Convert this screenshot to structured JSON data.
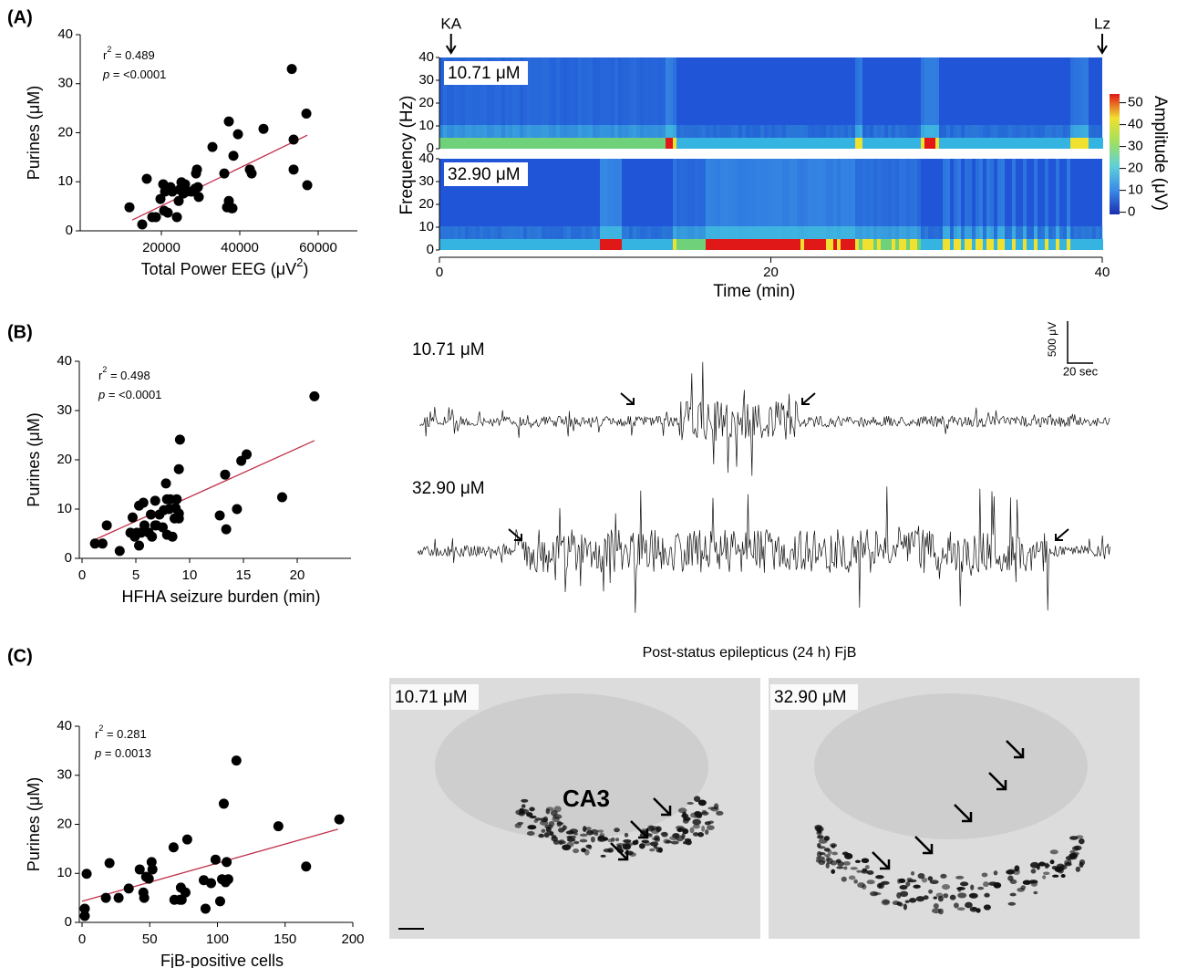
{
  "chart_data": [
    {
      "type": "scatter",
      "panel_label": "(A)",
      "ylabel": "Purines (μM)",
      "xlabel": "Total Power EEG (μV",
      "xlabel_sup": "2",
      "xlabel_end": ")",
      "xlim": [
        0,
        70000
      ],
      "xticks": [
        20000,
        40000,
        60000
      ],
      "ylim": [
        0,
        40
      ],
      "yticks": [
        0,
        10,
        20,
        30,
        40
      ],
      "color": "#000000",
      "x": [
        11860,
        15120,
        16280,
        17680,
        18600,
        19770,
        20470,
        20700,
        20930,
        21630,
        22330,
        22800,
        23960,
        24420,
        24660,
        25120,
        25590,
        26050,
        26520,
        27680,
        28610,
        28840,
        29080,
        29540,
        29310,
        33030,
        36050,
        36750,
        37210,
        37910,
        38140,
        37210,
        38380,
        39540,
        42570,
        43030,
        46050,
        53270,
        53730,
        53730,
        56990,
        57220
      ],
      "values": [
        4.8,
        1.3,
        10.6,
        2.8,
        2.8,
        6.5,
        9.5,
        4.1,
        8.0,
        3.7,
        8.9,
        8.0,
        2.8,
        6.1,
        8.4,
        9.9,
        7.6,
        9.5,
        8.0,
        8.0,
        8.6,
        11.7,
        12.5,
        6.9,
        8.9,
        17.1,
        11.7,
        4.8,
        6.1,
        4.6,
        4.6,
        22.3,
        15.3,
        19.7,
        12.5,
        11.7,
        20.8,
        33.0,
        18.6,
        12.5,
        23.9,
        9.3
      ],
      "trend": {
        "color": "#c0304a",
        "x": [
          12560,
          57220
        ],
        "y": [
          2.2,
          19.5
        ]
      },
      "annotations": [
        {
          "text": "r",
          "sup": "2",
          "rest": " = 0.489"
        },
        {
          "italic": "p",
          "rest": " = <0.0001"
        }
      ]
    },
    {
      "type": "scatter",
      "panel_label": "(B)",
      "ylabel": "Purines (μM)",
      "xlabel": "HFHA seizure burden (min)",
      "xlim": [
        0,
        25
      ],
      "xticks": [
        0,
        5,
        10,
        15,
        20
      ],
      "ylim": [
        0,
        40
      ],
      "yticks": [
        0,
        10,
        20,
        30,
        40
      ],
      "color": "#000000",
      "x": [
        1.2,
        1.9,
        2.3,
        3.5,
        4.5,
        4.7,
        4.9,
        5.1,
        5.3,
        5.3,
        5.5,
        5.7,
        5.8,
        6.2,
        6.4,
        6.5,
        6.8,
        6.8,
        6.9,
        7.2,
        7.5,
        7.6,
        7.8,
        7.9,
        7.9,
        8.1,
        8.2,
        8.4,
        8.6,
        8.7,
        8.8,
        9.0,
        9.0,
        9.0,
        9.1,
        12.8,
        13.3,
        13.4,
        14.4,
        14.8,
        15.3,
        18.6,
        21.6
      ],
      "values": [
        3.0,
        3.0,
        6.7,
        1.5,
        5.2,
        8.3,
        4.4,
        5.2,
        10.7,
        2.6,
        5.2,
        11.3,
        6.7,
        5.2,
        8.9,
        4.4,
        6.7,
        11.7,
        6.7,
        8.9,
        6.3,
        9.8,
        15.2,
        4.8,
        12.0,
        10.0,
        12.0,
        4.4,
        8.1,
        10.2,
        12.0,
        18.1,
        9.1,
        8.1,
        24.1,
        8.7,
        17.0,
        5.9,
        10.0,
        19.8,
        21.1,
        12.4,
        32.9
      ],
      "trend": {
        "color": "#c0304a",
        "x": [
          0.9,
          21.6
        ],
        "y": [
          3.5,
          23.9
        ]
      },
      "annotations": [
        {
          "text": "r",
          "sup": "2",
          "rest": " = 0.498"
        },
        {
          "italic": "p",
          "rest": " = <0.0001"
        }
      ]
    },
    {
      "type": "scatter",
      "panel_label": "(C)",
      "ylabel": "Purines (μM)",
      "xlabel": "FjB-positive cells",
      "xlim": [
        0,
        200
      ],
      "xticks": [
        0,
        50,
        100,
        150,
        200
      ],
      "ylim": [
        0,
        40
      ],
      "yticks": [
        0,
        10,
        20,
        30,
        40
      ],
      "color": "#000000",
      "x": [
        2,
        2,
        3.4,
        17.6,
        20.3,
        27,
        34.5,
        42.6,
        45.3,
        45.9,
        47.3,
        49.3,
        51.4,
        52,
        67.6,
        68.2,
        72.3,
        73,
        73.6,
        76.4,
        77.7,
        89.9,
        91.2,
        95.3,
        98.6,
        102,
        103.4,
        104.7,
        106,
        106.8,
        108,
        114,
        145,
        165.5,
        190
      ],
      "values": [
        1.3,
        2.8,
        9.9,
        5.0,
        12.1,
        5.0,
        6.9,
        10.8,
        6.1,
        5.0,
        9.3,
        8.9,
        12.3,
        10.8,
        15.3,
        4.6,
        4.6,
        7.1,
        4.6,
        6.1,
        16.9,
        8.6,
        2.8,
        8.0,
        12.8,
        4.3,
        8.8,
        24.2,
        8.2,
        12.3,
        8.8,
        33.0,
        19.6,
        11.4,
        21.0
      ],
      "trend": {
        "color": "#c0304a",
        "x": [
          0,
          189
        ],
        "y": [
          4.3,
          19.0
        ]
      },
      "annotations": [
        {
          "text": "r",
          "sup": "2",
          "rest": " = 0.281"
        },
        {
          "italic": "p",
          "rest": " = 0.0013"
        }
      ]
    },
    {
      "type": "spectrogram",
      "xlabel": "Time (min)",
      "ylabel": "Frequency (Hz)",
      "xlim": [
        0,
        40
      ],
      "xticks": [
        0,
        20,
        40
      ],
      "ylim": [
        0,
        40
      ],
      "yticks": [
        0,
        10,
        20,
        30,
        40
      ],
      "panels": [
        "10.71 μM",
        "32.90 μM"
      ],
      "annotations": [
        {
          "text": "KA",
          "x": 0.7
        },
        {
          "text": "Lz",
          "x": 40
        }
      ],
      "colorbar": {
        "label": "Amplitude (μV)",
        "lim": [
          -1,
          54
        ],
        "ticks": [
          0,
          10,
          20,
          30,
          40,
          50
        ]
      }
    }
  ],
  "traces": {
    "labels": [
      "10.71 μM",
      "32.90 μM"
    ],
    "scale_y": "500 μV",
    "scale_x": "20 sec"
  },
  "images": {
    "title": "Post-status epilepticus (24 h) FjB",
    "labels": [
      "10.71 μM",
      "32.90 μM"
    ],
    "region": "CA3"
  }
}
